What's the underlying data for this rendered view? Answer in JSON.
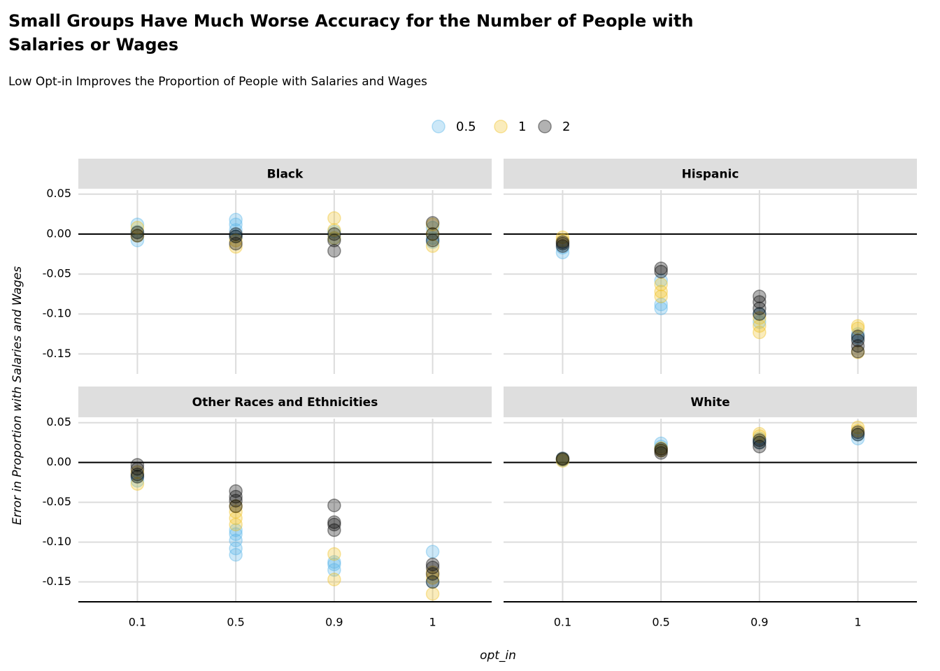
{
  "title": "Small Groups Have Much Worse Accuracy for the Number of People with Salaries or Wages",
  "title_lines": [
    "Small Groups Have Much Worse Accuracy for the Number of People with",
    "Salaries or Wages"
  ],
  "subtitle": "Low Opt-in Improves the Proportion of People with Salaries and Wages",
  "x_label": "opt_in",
  "y_label": "Error in Proportion with Salaries and Wages",
  "chart_data": [
    {
      "type": "scatter",
      "title": "Black",
      "categories": [
        "0.1",
        "0.5",
        "0.9",
        "1"
      ],
      "ylim": [
        -0.175,
        0.055
      ],
      "yticks": [
        -0.15,
        {
          "value": -0.1,
          "label": "-0.10"
        },
        -0.05,
        {
          "value": 0,
          "label": "0.00"
        },
        0.05
      ],
      "reference_line": 0,
      "grid": true,
      "series": [
        {
          "name": "0.5",
          "color": "#56B4E9",
          "x": [
            "0.1",
            "0.1",
            "0.1",
            "0.5",
            "0.5",
            "0.5",
            "0.5",
            "0.9",
            "0.9",
            "1",
            "1",
            "1"
          ],
          "values": [
            0.012,
            -0.008,
            0.003,
            0.018,
            0.012,
            0.005,
            -0.003,
            0.003,
            -0.005,
            0.008,
            -0.005,
            -0.01
          ]
        },
        {
          "name": "1",
          "color": "#F0C020",
          "x": [
            "0.1",
            "0.1",
            "0.5",
            "0.5",
            "0.9",
            "0.9",
            "0.9",
            "1",
            "1",
            "1"
          ],
          "values": [
            0.008,
            -0.002,
            -0.016,
            -0.008,
            0.02,
            0.005,
            -0.005,
            0.012,
            0,
            -0.015
          ]
        },
        {
          "name": "2",
          "color": "#000000",
          "x": [
            "0.1",
            "0.1",
            "0.5",
            "0.5",
            "0.5",
            "0.9",
            "0.9",
            "0.9",
            "1",
            "1",
            "1"
          ],
          "values": [
            0.002,
            -0.002,
            -0.012,
            -0.003,
            0,
            -0.021,
            -0.008,
            0,
            0.014,
            -0.008,
            0
          ]
        }
      ]
    },
    {
      "type": "scatter",
      "title": "Hispanic",
      "categories": [
        "0.1",
        "0.5",
        "0.9",
        "1"
      ],
      "ylim": [
        -0.175,
        0.055
      ],
      "yticks": [
        -0.15,
        {
          "value": -0.1,
          "label": "-0.10"
        },
        -0.05,
        {
          "value": 0,
          "label": "0.00"
        },
        0.05
      ],
      "reference_line": 0,
      "grid": true,
      "series": [
        {
          "name": "0.5",
          "color": "#56B4E9",
          "x": [
            "0.1",
            "0.1",
            "0.5",
            "0.5",
            "0.5",
            "0.9",
            "0.9",
            "1",
            "1"
          ],
          "values": [
            -0.023,
            -0.017,
            -0.093,
            -0.088,
            -0.058,
            -0.11,
            -0.1,
            -0.13,
            -0.125
          ]
        },
        {
          "name": "1",
          "color": "#F0C020",
          "x": [
            "0.1",
            "0.1",
            "0.5",
            "0.5",
            "0.5",
            "0.9",
            "0.9",
            "0.9",
            "1",
            "1",
            "1"
          ],
          "values": [
            -0.004,
            -0.008,
            -0.078,
            -0.072,
            -0.063,
            -0.123,
            -0.115,
            -0.105,
            -0.148,
            -0.118,
            -0.115
          ]
        },
        {
          "name": "2",
          "color": "#000000",
          "x": [
            "0.1",
            "0.1",
            "0.1",
            "0.5",
            "0.5",
            "0.9",
            "0.9",
            "0.9",
            "0.9",
            "1",
            "1",
            "1",
            "1"
          ],
          "values": [
            -0.01,
            -0.015,
            -0.012,
            -0.043,
            -0.047,
            -0.078,
            -0.085,
            -0.093,
            -0.1,
            -0.147,
            -0.14,
            -0.133,
            -0.128
          ]
        }
      ]
    },
    {
      "type": "scatter",
      "title": "Other Races and Ethnicities",
      "categories": [
        "0.1",
        "0.5",
        "0.9",
        "1"
      ],
      "ylim": [
        -0.175,
        0.055
      ],
      "yticks": [
        -0.15,
        {
          "value": -0.1,
          "label": "-0.10"
        },
        -0.05,
        {
          "value": 0,
          "label": "0.00"
        },
        0.05
      ],
      "reference_line": 0,
      "grid": true,
      "series": [
        {
          "name": "0.5",
          "color": "#56B4E9",
          "x": [
            "0.1",
            "0.1",
            "0.5",
            "0.5",
            "0.5",
            "0.5",
            "0.5",
            "0.9",
            "0.9",
            "0.9",
            "1",
            "1"
          ],
          "values": [
            -0.023,
            -0.017,
            -0.116,
            -0.108,
            -0.098,
            -0.09,
            -0.085,
            -0.135,
            -0.128,
            -0.125,
            -0.112,
            -0.15
          ]
        },
        {
          "name": "1",
          "color": "#F0C020",
          "x": [
            "0.1",
            "0.1",
            "0.5",
            "0.5",
            "0.5",
            "0.5",
            "0.9",
            "0.9",
            "1",
            "1",
            "1"
          ],
          "values": [
            -0.027,
            -0.012,
            -0.078,
            -0.07,
            -0.062,
            -0.055,
            -0.147,
            -0.115,
            -0.165,
            -0.145,
            -0.138
          ]
        },
        {
          "name": "2",
          "color": "#000000",
          "x": [
            "0.1",
            "0.1",
            "0.1",
            "0.1",
            "0.5",
            "0.5",
            "0.5",
            "0.5",
            "0.9",
            "0.9",
            "0.9",
            "0.9",
            "1",
            "1",
            "1",
            "1"
          ],
          "values": [
            -0.003,
            -0.008,
            -0.015,
            -0.018,
            -0.036,
            -0.043,
            -0.048,
            -0.055,
            -0.054,
            -0.075,
            -0.078,
            -0.085,
            -0.128,
            -0.132,
            -0.14,
            -0.15
          ]
        }
      ]
    },
    {
      "type": "scatter",
      "title": "White",
      "categories": [
        "0.1",
        "0.5",
        "0.9",
        "1"
      ],
      "ylim": [
        -0.175,
        0.055
      ],
      "yticks": [
        -0.15,
        {
          "value": -0.1,
          "label": "-0.10"
        },
        -0.05,
        {
          "value": 0,
          "label": "0.00"
        },
        0.05
      ],
      "reference_line": 0,
      "grid": true,
      "series": [
        {
          "name": "0.5",
          "color": "#56B4E9",
          "x": [
            "0.1",
            "0.1",
            "0.5",
            "0.5",
            "0.9",
            "0.9",
            "1",
            "1"
          ],
          "values": [
            0.005,
            0.003,
            0.024,
            0.02,
            0.03,
            0.025,
            0.03,
            0.035
          ]
        },
        {
          "name": "1",
          "color": "#F0C020",
          "x": [
            "0.1",
            "0.1",
            "0.5",
            "0.5",
            "0.9",
            "0.9",
            "1",
            "1"
          ],
          "values": [
            0.002,
            0.004,
            0.018,
            0.015,
            0.036,
            0.033,
            0.044,
            0.04
          ]
        },
        {
          "name": "2",
          "color": "#000000",
          "x": [
            "0.1",
            "0.1",
            "0.5",
            "0.5",
            "0.5",
            "0.9",
            "0.9",
            "0.9",
            "1",
            "1"
          ],
          "values": [
            0.004,
            0.005,
            0.012,
            0.015,
            0.017,
            0.02,
            0.025,
            0.028,
            0.035,
            0.038
          ]
        }
      ]
    }
  ]
}
